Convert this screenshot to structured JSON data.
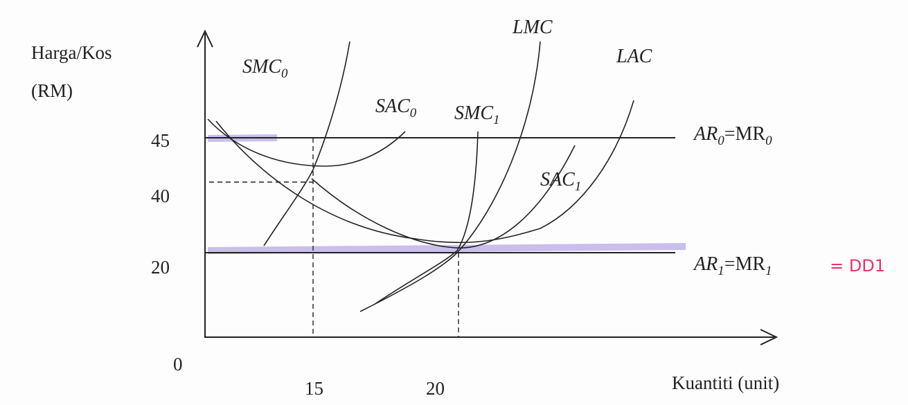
{
  "axes": {
    "y_label": "Harga/Kos",
    "y_unit": "(RM)",
    "x_label": "Kuantiti (unit)",
    "origin": "0"
  },
  "y_ticks": [
    "45",
    "40",
    "20"
  ],
  "x_ticks": [
    "15",
    "20"
  ],
  "curves": {
    "smc0": {
      "text": "SMC",
      "sub": "0"
    },
    "sac0": {
      "text": "SAC",
      "sub": "0"
    },
    "lmc": {
      "text": "LMC"
    },
    "lac": {
      "text": "LAC"
    },
    "smc1": {
      "text": "SMC",
      "sub": "1"
    },
    "sac1": {
      "text": "SAC",
      "sub": "1"
    }
  },
  "lines": {
    "ar0": {
      "text": "AR",
      "sub": "0",
      "text2": "=MR",
      "sub2": "0"
    },
    "ar1": {
      "text": "AR",
      "sub": "1",
      "text2": "=MR",
      "sub2": "1"
    }
  },
  "annotation": "= DD1"
}
